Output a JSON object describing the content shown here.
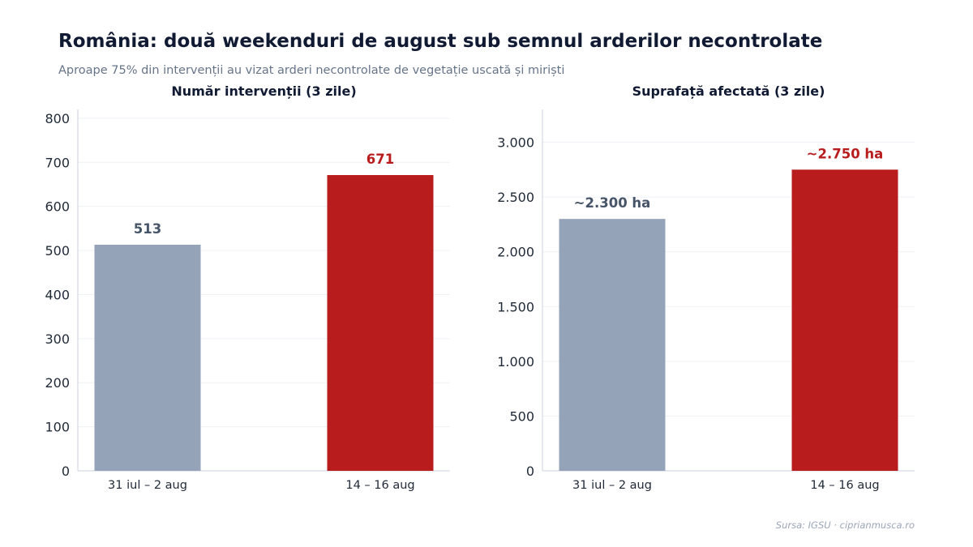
{
  "header": {
    "title": "România: două weekenduri de august sub semnul arderilor necontrolate",
    "subtitle": "Aproape 75% din intervenții au vizat arderi necontrolate de vegetație uscată și miriști"
  },
  "footer": {
    "source": "Sursa: IGSU · ciprianmusca.ro"
  },
  "colors": {
    "baseline": "#94a3b8",
    "highlight": "#b91c1c",
    "baseline_label": "#475569",
    "highlight_label": "#b91c1c"
  },
  "chart_data": [
    {
      "type": "bar",
      "title": "Număr intervenții (3 zile)",
      "categories": [
        "31 iul – 2 aug",
        "14 – 16 aug"
      ],
      "values": [
        513,
        671
      ],
      "data_labels": [
        "513",
        "671"
      ],
      "ylim": [
        0,
        820
      ],
      "yticks": [
        0,
        100,
        200,
        300,
        400,
        500,
        600,
        700,
        800
      ],
      "ytick_labels": [
        "0",
        "100",
        "200",
        "300",
        "400",
        "500",
        "600",
        "700",
        "800"
      ],
      "grid": true
    },
    {
      "type": "bar",
      "title": "Suprafață afectată (3 zile)",
      "categories": [
        "31 iul – 2 aug",
        "14 – 16 aug"
      ],
      "values": [
        2300,
        2750
      ],
      "data_labels": [
        "~2.300 ha",
        "~2.750 ha"
      ],
      "ylim": [
        0,
        3300
      ],
      "yticks": [
        0,
        500,
        1000,
        1500,
        2000,
        2500,
        3000
      ],
      "ytick_labels": [
        "0",
        "500",
        "1.000",
        "1.500",
        "2.000",
        "2.500",
        "3.000"
      ],
      "grid": true
    }
  ]
}
